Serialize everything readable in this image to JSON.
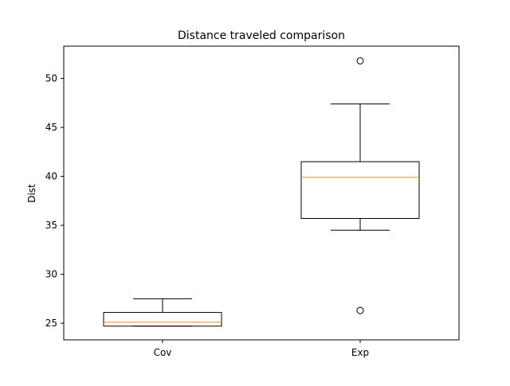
{
  "chart_data": {
    "type": "box",
    "title": "Distance traveled comparison",
    "xlabel": "",
    "ylabel": "Dist",
    "ylim": [
      23.3,
      53.3
    ],
    "yticks": [
      25,
      30,
      35,
      40,
      45,
      50
    ],
    "categories": [
      "Cov",
      "Exp"
    ],
    "boxes": [
      {
        "category": "Cov",
        "whisker_low": 24.7,
        "q1": 24.7,
        "median": 25.1,
        "q3": 26.1,
        "whisker_high": 27.5,
        "outliers": []
      },
      {
        "category": "Exp",
        "whisker_low": 34.5,
        "q1": 35.7,
        "median": 39.9,
        "q3": 41.5,
        "whisker_high": 47.4,
        "outliers": [
          51.8,
          26.3
        ]
      }
    ],
    "colors": {
      "box": "#000000",
      "median": "#ff7f0e"
    },
    "grid": false
  }
}
